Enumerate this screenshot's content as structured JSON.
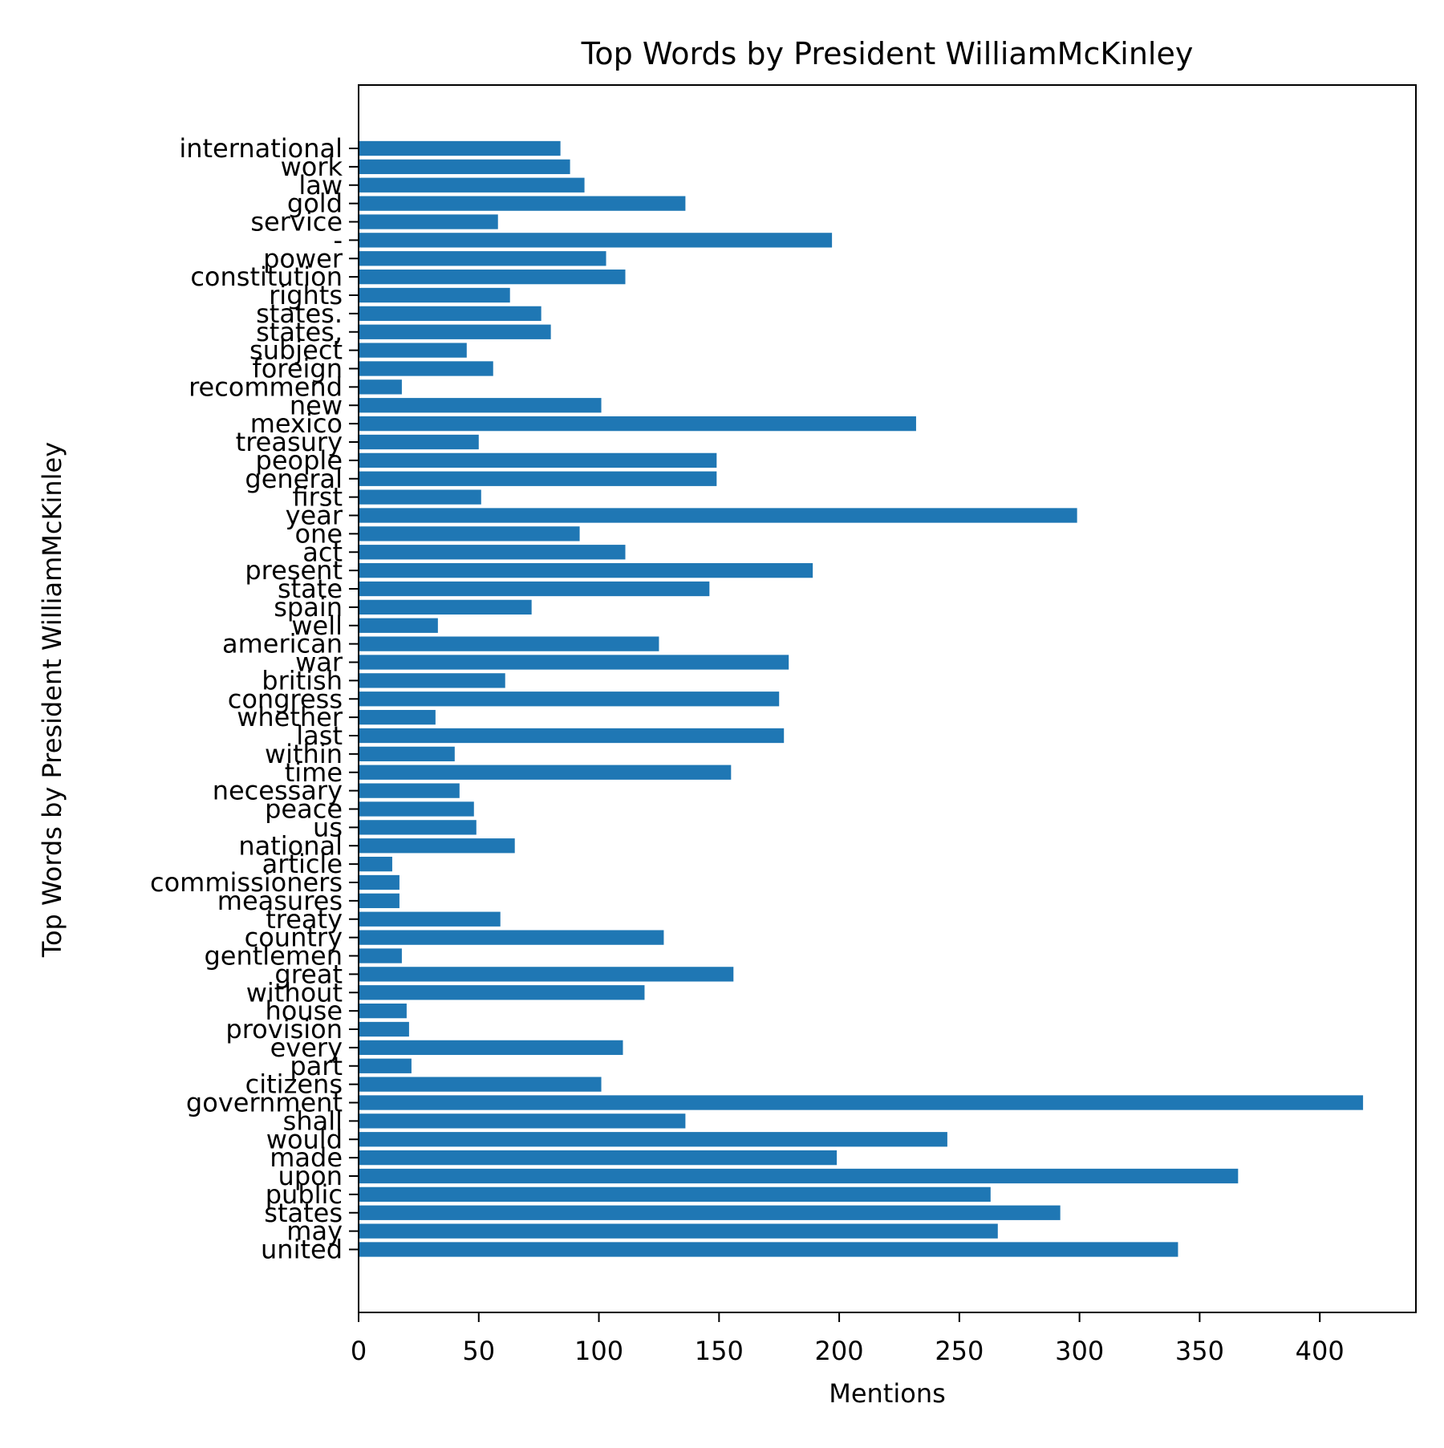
{
  "chart_data": {
    "type": "bar",
    "orientation": "horizontal",
    "title": "Top Words by President WilliamMcKinley",
    "xlabel": "Mentions",
    "ylabel": "Top Words by President WilliamMcKinley",
    "xlim": [
      0,
      440
    ],
    "xticks": [
      0,
      50,
      100,
      150,
      200,
      250,
      300,
      350,
      400
    ],
    "grid": false,
    "bar_color": "#1f77b4",
    "categories": [
      "united",
      "may",
      "states",
      "public",
      "upon",
      "made",
      "would",
      "shall",
      "government",
      "citizens",
      "part",
      "every",
      "provision",
      "house",
      "without",
      "great",
      "gentlemen",
      "country",
      "treaty",
      "measures",
      "commissioners",
      "article",
      "national",
      "us",
      "peace",
      "necessary",
      "time",
      "within",
      "last",
      "whether",
      "congress",
      "british",
      "war",
      "american",
      "well",
      "spain",
      "state",
      "present",
      "act",
      "one",
      "year",
      "first",
      "general",
      "people",
      "treasury",
      "mexico",
      "new",
      "recommend",
      "foreign",
      "subject",
      "states,",
      "states.",
      "rights",
      "constitution",
      "power",
      "-",
      "service",
      "gold",
      "law",
      "work",
      "international"
    ],
    "values": [
      341,
      266,
      292,
      263,
      366,
      199,
      245,
      136,
      418,
      101,
      22,
      110,
      21,
      20,
      119,
      156,
      18,
      127,
      59,
      17,
      17,
      14,
      65,
      49,
      48,
      42,
      155,
      40,
      177,
      32,
      175,
      61,
      179,
      125,
      33,
      72,
      146,
      189,
      111,
      92,
      299,
      51,
      149,
      149,
      50,
      232,
      101,
      18,
      56,
      45,
      80,
      76,
      63,
      111,
      103,
      197,
      58,
      136,
      94,
      88,
      84
    ]
  }
}
